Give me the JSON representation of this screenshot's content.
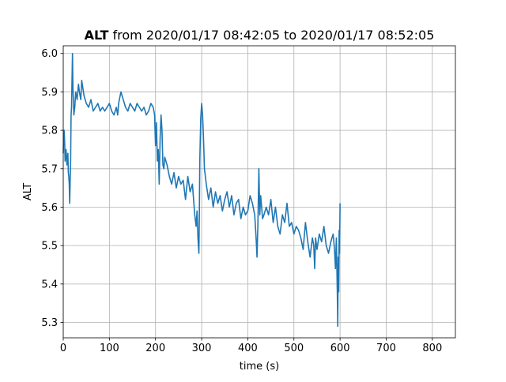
{
  "title": {
    "bold": "ALT",
    "rest": " from 2020/01/17 08:42:05 to 2020/01/17 08:52:05"
  },
  "chart_data": {
    "type": "line",
    "title": "ALT from 2020/01/17 08:42:05 to 2020/01/17 08:52:05",
    "xlabel": "time (s)",
    "ylabel": "ALT",
    "xlim": [
      0,
      850
    ],
    "ylim": [
      5.26,
      6.02
    ],
    "xticks": [
      0,
      100,
      200,
      300,
      400,
      500,
      600,
      700,
      800
    ],
    "yticks": [
      5.3,
      5.4,
      5.5,
      5.6,
      5.7,
      5.8,
      5.9,
      6.0
    ],
    "ytick_labels": [
      "5.3",
      "5.4",
      "5.5",
      "5.6",
      "5.7",
      "5.8",
      "5.9",
      "6.0"
    ],
    "grid": true,
    "series": [
      {
        "color": "#1f77b4",
        "x": [
          0,
          1,
          2,
          3,
          4,
          6,
          8,
          10,
          11,
          12,
          13,
          14,
          15,
          16,
          17,
          18,
          19,
          20,
          21,
          22,
          23,
          25,
          27,
          30,
          33,
          35,
          38,
          40,
          45,
          50,
          55,
          60,
          65,
          70,
          75,
          80,
          85,
          90,
          95,
          100,
          105,
          110,
          115,
          118,
          120,
          125,
          130,
          135,
          140,
          145,
          150,
          155,
          160,
          165,
          170,
          175,
          180,
          185,
          190,
          195,
          198,
          200,
          202,
          204,
          206,
          208,
          210,
          212,
          214,
          216,
          218,
          220,
          225,
          230,
          235,
          240,
          245,
          250,
          255,
          260,
          265,
          270,
          275,
          280,
          285,
          288,
          290,
          292,
          294,
          295,
          296,
          298,
          300,
          302,
          304,
          306,
          308,
          310,
          315,
          320,
          325,
          330,
          335,
          340,
          345,
          350,
          355,
          360,
          365,
          370,
          375,
          380,
          385,
          390,
          395,
          400,
          405,
          410,
          415,
          418,
          420,
          422,
          424,
          426,
          428,
          430,
          432,
          435,
          440,
          445,
          450,
          455,
          460,
          465,
          470,
          475,
          480,
          485,
          490,
          495,
          500,
          505,
          510,
          515,
          520,
          525,
          530,
          535,
          540,
          543,
          545,
          547,
          550,
          555,
          560,
          565,
          570,
          575,
          580,
          585,
          588,
          590,
          592,
          594,
          595,
          596,
          597,
          598,
          599,
          600
        ],
        "y": [
          5.74,
          5.79,
          5.8,
          5.77,
          5.72,
          5.75,
          5.71,
          5.74,
          5.69,
          5.68,
          5.66,
          5.61,
          5.67,
          5.72,
          5.84,
          5.86,
          5.93,
          6.0,
          5.91,
          5.88,
          5.84,
          5.86,
          5.9,
          5.88,
          5.92,
          5.9,
          5.88,
          5.93,
          5.89,
          5.87,
          5.86,
          5.88,
          5.85,
          5.86,
          5.87,
          5.85,
          5.86,
          5.85,
          5.86,
          5.87,
          5.85,
          5.84,
          5.86,
          5.84,
          5.87,
          5.9,
          5.88,
          5.86,
          5.85,
          5.87,
          5.86,
          5.85,
          5.87,
          5.86,
          5.85,
          5.86,
          5.84,
          5.85,
          5.87,
          5.86,
          5.84,
          5.76,
          5.82,
          5.72,
          5.75,
          5.66,
          5.78,
          5.84,
          5.8,
          5.71,
          5.7,
          5.73,
          5.71,
          5.68,
          5.66,
          5.69,
          5.65,
          5.68,
          5.66,
          5.67,
          5.62,
          5.68,
          5.64,
          5.66,
          5.58,
          5.55,
          5.59,
          5.52,
          5.48,
          5.58,
          5.72,
          5.83,
          5.87,
          5.84,
          5.78,
          5.7,
          5.68,
          5.66,
          5.62,
          5.65,
          5.6,
          5.64,
          5.61,
          5.63,
          5.59,
          5.62,
          5.64,
          5.6,
          5.63,
          5.58,
          5.61,
          5.62,
          5.57,
          5.6,
          5.58,
          5.59,
          5.63,
          5.61,
          5.58,
          5.52,
          5.47,
          5.56,
          5.7,
          5.58,
          5.63,
          5.6,
          5.57,
          5.58,
          5.6,
          5.58,
          5.62,
          5.56,
          5.6,
          5.55,
          5.53,
          5.58,
          5.56,
          5.61,
          5.55,
          5.56,
          5.53,
          5.55,
          5.54,
          5.52,
          5.49,
          5.56,
          5.51,
          5.47,
          5.52,
          5.5,
          5.44,
          5.52,
          5.49,
          5.53,
          5.51,
          5.55,
          5.5,
          5.48,
          5.51,
          5.53,
          5.49,
          5.44,
          5.52,
          5.38,
          5.29,
          5.47,
          5.38,
          5.54,
          5.48,
          5.61
        ]
      }
    ]
  }
}
